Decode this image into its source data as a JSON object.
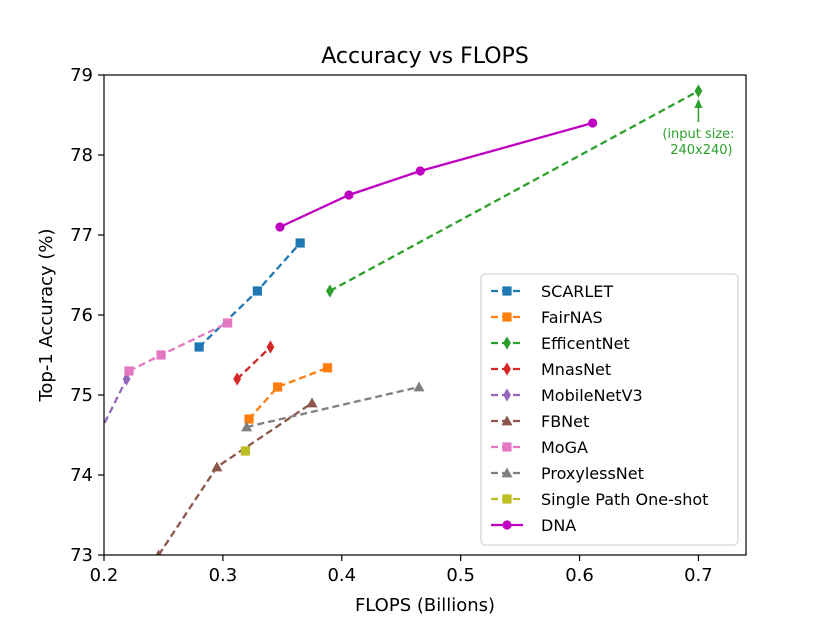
{
  "chart_data": {
    "type": "line",
    "title": "Accuracy vs FLOPS",
    "xlabel": "FLOPS (Billions)",
    "ylabel": "Top-1 Accuracy (%)",
    "xlim": [
      0.2,
      0.74
    ],
    "ylim": [
      73,
      79
    ],
    "xticks": [
      "0.2",
      "0.3",
      "0.4",
      "0.5",
      "0.6",
      "0.7"
    ],
    "yticks": [
      "73",
      "74",
      "75",
      "76",
      "77",
      "78",
      "79"
    ],
    "grid": false,
    "legend_position": "lower-right",
    "annotation": {
      "text_line1": "(input size:",
      "text_line2": "240x240)",
      "x": 0.7,
      "y": 78.8,
      "color": "#2ca02c"
    },
    "series": [
      {
        "name": "SCARLET",
        "color": "#1f77b4",
        "marker": "square",
        "dashed": true,
        "points": [
          [
            0.28,
            75.6
          ],
          [
            0.329,
            76.3
          ],
          [
            0.365,
            76.9
          ]
        ]
      },
      {
        "name": "FairNAS",
        "color": "#ff7f0e",
        "marker": "square",
        "dashed": true,
        "points": [
          [
            0.322,
            74.7
          ],
          [
            0.346,
            75.1
          ],
          [
            0.388,
            75.34
          ]
        ]
      },
      {
        "name": "EfficentNet",
        "color": "#2ca02c",
        "marker": "diamond",
        "dashed": true,
        "points": [
          [
            0.39,
            76.3
          ],
          [
            0.7,
            78.8
          ]
        ]
      },
      {
        "name": "MnasNet",
        "color": "#d62728",
        "marker": "diamond",
        "dashed": true,
        "points": [
          [
            0.312,
            75.2
          ],
          [
            0.34,
            75.6
          ]
        ]
      },
      {
        "name": "MobileNetV3",
        "color": "#9467bd",
        "marker": "diamond",
        "dashed": true,
        "points": [
          [
            0.155,
            73.3
          ],
          [
            0.219,
            75.2
          ]
        ]
      },
      {
        "name": "FBNet",
        "color": "#8c564b",
        "marker": "triangle",
        "dashed": true,
        "points": [
          [
            0.246,
            73.0
          ],
          [
            0.295,
            74.1
          ],
          [
            0.375,
            74.9
          ]
        ]
      },
      {
        "name": "MoGA",
        "color": "#e377c2",
        "marker": "square",
        "dashed": true,
        "points": [
          [
            0.221,
            75.3
          ],
          [
            0.248,
            75.5
          ],
          [
            0.304,
            75.9
          ]
        ]
      },
      {
        "name": "ProxylessNet",
        "color": "#7f7f7f",
        "marker": "triangle",
        "dashed": true,
        "points": [
          [
            0.32,
            74.6
          ],
          [
            0.465,
            75.1
          ]
        ]
      },
      {
        "name": "Single Path One-shot",
        "color": "#bcbd22",
        "marker": "square",
        "dashed": true,
        "points": [
          [
            0.319,
            74.3
          ]
        ]
      },
      {
        "name": "DNA",
        "color": "#c000c0",
        "marker": "circle",
        "dashed": false,
        "points": [
          [
            0.348,
            77.1
          ],
          [
            0.406,
            77.5
          ],
          [
            0.466,
            77.8
          ],
          [
            0.611,
            78.4
          ]
        ]
      }
    ]
  }
}
